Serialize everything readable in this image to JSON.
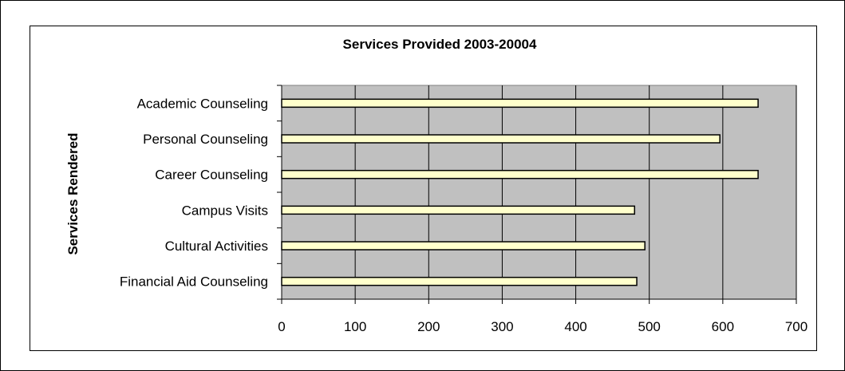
{
  "chart_data": {
    "type": "bar",
    "orientation": "horizontal",
    "title": "Services Provided 2003-20004",
    "xlabel": "",
    "ylabel": "Services Rendered",
    "categories": [
      "Academic Counseling",
      "Personal Counseling",
      "Career Counseling",
      "Campus Visits",
      "Cultural Activities",
      "Financial Aid Counseling"
    ],
    "values": [
      648,
      596,
      648,
      480,
      494,
      483
    ],
    "xlim": [
      0,
      700
    ],
    "xticks": [
      "0",
      "100",
      "200",
      "300",
      "400",
      "500",
      "600",
      "700"
    ],
    "grid": "vertical gridlines",
    "legend": "none",
    "colors": {
      "plot_bg": "#c0c0c0",
      "bar_fill": "#ffffcc",
      "bar_stroke": "#000000",
      "grid": "#000000"
    }
  }
}
